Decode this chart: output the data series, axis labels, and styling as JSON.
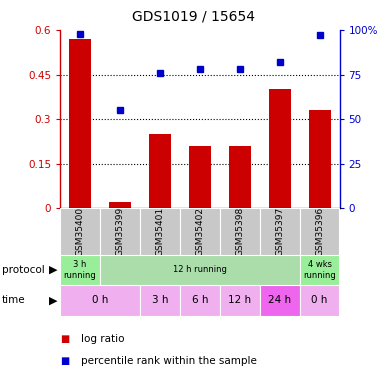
{
  "title": "GDS1019 / 15654",
  "samples": [
    "GSM35400",
    "GSM35399",
    "GSM35401",
    "GSM35402",
    "GSM35398",
    "GSM35397",
    "GSM35396"
  ],
  "log_ratio": [
    0.57,
    0.02,
    0.25,
    0.21,
    0.21,
    0.4,
    0.33
  ],
  "percentile_rank": [
    98,
    55,
    76,
    78,
    78,
    82,
    97
  ],
  "bar_color": "#cc0000",
  "dot_color": "#0000cc",
  "ylim_left": [
    0,
    0.6
  ],
  "ylim_right": [
    0,
    100
  ],
  "yticks_left": [
    0,
    0.15,
    0.3,
    0.45,
    0.6
  ],
  "ytick_labels_left": [
    "0",
    "0.15",
    "0.3",
    "0.45",
    "0.6"
  ],
  "yticks_right": [
    0,
    25,
    50,
    75,
    100
  ],
  "ytick_labels_right": [
    "0",
    "25",
    "50",
    "75",
    "100%"
  ],
  "bg_color": "#ffffff",
  "sample_bg_color": "#c8c8c8",
  "prot_spans": [
    [
      0,
      1,
      "3 h\nrunning",
      "#99ee99"
    ],
    [
      1,
      6,
      "12 h running",
      "#aaddaa"
    ],
    [
      6,
      7,
      "4 wks\nrunning",
      "#99ee99"
    ]
  ],
  "time_data": [
    [
      0,
      2,
      "0 h",
      "#f0b0f0"
    ],
    [
      2,
      3,
      "3 h",
      "#f0b0f0"
    ],
    [
      3,
      4,
      "6 h",
      "#f0b0f0"
    ],
    [
      4,
      5,
      "12 h",
      "#f0b0f0"
    ],
    [
      5,
      6,
      "24 h",
      "#ee66ee"
    ],
    [
      6,
      7,
      "0 h",
      "#f0b0f0"
    ]
  ],
  "legend_items": [
    [
      "log ratio",
      "#cc0000"
    ],
    [
      "percentile rank within the sample",
      "#0000cc"
    ]
  ]
}
